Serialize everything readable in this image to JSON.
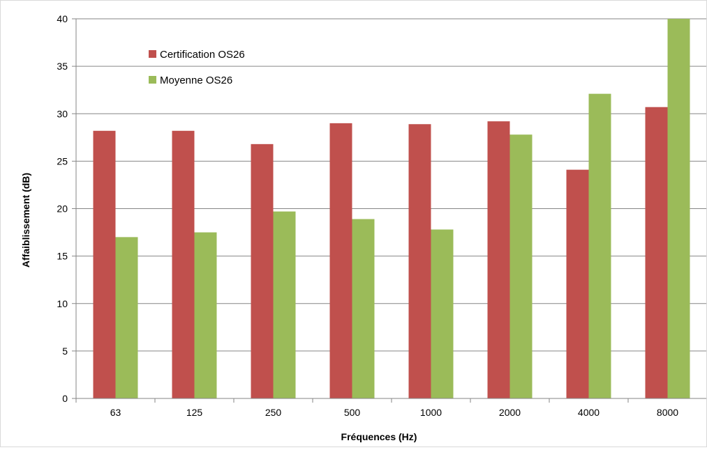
{
  "chart_data": {
    "type": "bar",
    "categories": [
      "63",
      "125",
      "250",
      "500",
      "1000",
      "2000",
      "4000",
      "8000"
    ],
    "series": [
      {
        "name": "Certification OS26",
        "color": "#c0504d",
        "values": [
          28.2,
          28.2,
          26.8,
          29.0,
          28.9,
          29.2,
          24.1,
          30.7
        ]
      },
      {
        "name": "Moyenne OS26",
        "color": "#9bbb59",
        "values": [
          17.0,
          17.5,
          19.7,
          18.9,
          17.8,
          27.8,
          32.1,
          40.0
        ]
      }
    ],
    "title": "",
    "xlabel": "Fréquences (Hz)",
    "ylabel": "Affaiblissement (dB)",
    "ylim": [
      0,
      40
    ],
    "yticks": [
      "0",
      "5",
      "10",
      "15",
      "20",
      "25",
      "30",
      "35",
      "40"
    ],
    "grid": "horizontal",
    "legend_position": "top-left"
  }
}
